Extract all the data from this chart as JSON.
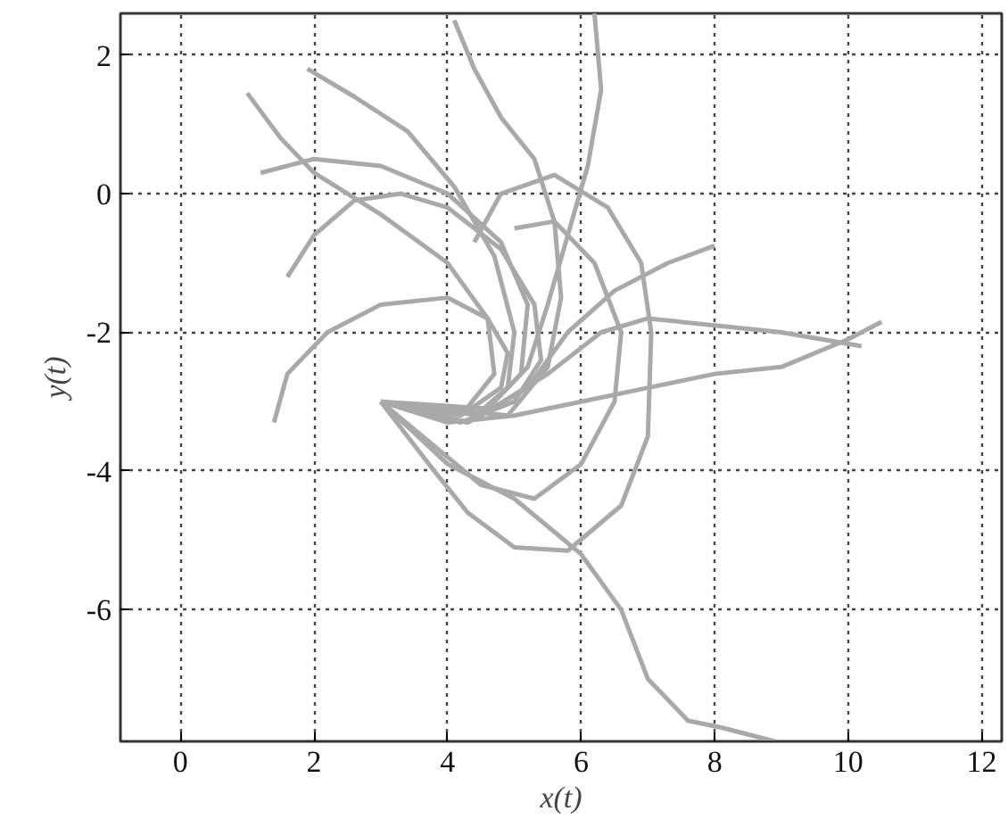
{
  "chart_data": {
    "type": "line",
    "xlabel": "x(t)",
    "ylabel": "y(t)",
    "xlim": [
      -0.9,
      12.3
    ],
    "ylim": [
      -7.9,
      2.6
    ],
    "xticks": [
      0,
      2,
      4,
      6,
      8,
      10,
      12
    ],
    "yticks": [
      -6,
      -4,
      -2,
      0,
      2
    ],
    "grid": true,
    "series": [
      {
        "color": "#a9a9a9",
        "x": [
          1.4,
          1.6,
          2.2,
          3.0,
          4.0,
          4.6,
          4.9,
          4.8,
          4.2,
          3.0
        ],
        "values": [
          -3.3,
          -2.6,
          -2.0,
          -1.6,
          -1.5,
          -1.8,
          -2.3,
          -2.8,
          -3.2,
          -3.0
        ]
      },
      {
        "color": "#a9a9a9",
        "x": [
          1.6,
          2.0,
          2.6,
          3.3,
          4.0,
          4.8,
          5.3,
          5.4,
          5.0,
          4.2,
          3.0
        ],
        "values": [
          -1.2,
          -0.6,
          -0.1,
          0.0,
          -0.2,
          -0.8,
          -1.6,
          -2.4,
          -3.0,
          -3.3,
          -3.0
        ]
      },
      {
        "color": "#a9a9a9",
        "x": [
          1.2,
          2.0,
          3.0,
          4.0,
          4.8,
          5.2,
          5.1,
          4.5,
          3.0
        ],
        "values": [
          0.3,
          0.5,
          0.4,
          0.0,
          -0.7,
          -1.6,
          -2.6,
          -3.2,
          -3.0
        ]
      },
      {
        "color": "#a9a9a9",
        "x": [
          1.0,
          1.5,
          2.0,
          3.0,
          4.0,
          4.6,
          4.7,
          4.2,
          3.0
        ],
        "values": [
          1.45,
          0.8,
          0.3,
          -0.3,
          -1.0,
          -1.8,
          -2.6,
          -3.2,
          -3.0
        ]
      },
      {
        "color": "#a9a9a9",
        "x": [
          1.9,
          2.6,
          3.4,
          4.1,
          4.7,
          5.0,
          4.9,
          4.3,
          3.0
        ],
        "values": [
          1.8,
          1.4,
          0.9,
          0.1,
          -0.9,
          -2.0,
          -2.8,
          -3.3,
          -3.0
        ]
      },
      {
        "color": "#a9a9a9",
        "x": [
          4.1,
          4.4,
          4.8,
          5.3,
          5.6,
          5.7,
          5.5,
          4.9,
          3.0
        ],
        "values": [
          2.5,
          1.8,
          1.1,
          0.5,
          -0.4,
          -1.5,
          -2.5,
          -3.2,
          -3.0
        ]
      },
      {
        "color": "#a9a9a9",
        "x": [
          6.2,
          6.3,
          6.1,
          5.8,
          5.5,
          5.2,
          4.6,
          3.0
        ],
        "values": [
          2.6,
          1.5,
          0.4,
          -0.6,
          -1.6,
          -2.5,
          -3.1,
          -3.0
        ]
      },
      {
        "color": "#a9a9a9",
        "x": [
          4.4,
          4.8,
          5.6,
          6.4,
          6.9,
          7.05,
          7.0,
          6.6,
          5.8,
          5.0,
          4.3,
          3.8,
          3.0
        ],
        "values": [
          -0.7,
          0.0,
          0.27,
          -0.2,
          -1.0,
          -2.0,
          -3.5,
          -4.5,
          -5.15,
          -5.1,
          -4.6,
          -4.0,
          -3.0
        ]
      },
      {
        "color": "#a9a9a9",
        "x": [
          5.0,
          5.6,
          6.2,
          6.6,
          6.5,
          6.0,
          5.3,
          4.5,
          3.0
        ],
        "values": [
          -0.5,
          -0.4,
          -1.0,
          -2.0,
          -3.0,
          -3.9,
          -4.4,
          -4.2,
          -3.0
        ]
      },
      {
        "color": "#a9a9a9",
        "x": [
          3.0,
          4.0,
          5.0,
          6.0,
          6.6,
          7.0,
          7.6,
          8.1,
          8.9
        ],
        "values": [
          -3.0,
          -3.9,
          -4.4,
          -5.2,
          -6.0,
          -7.0,
          -7.6,
          -7.7,
          -7.9
        ]
      },
      {
        "color": "#a9a9a9",
        "x": [
          8.0,
          7.3,
          6.5,
          5.8,
          5.2,
          4.3,
          3.0
        ],
        "values": [
          -0.75,
          -1.0,
          -1.4,
          -2.0,
          -2.8,
          -3.3,
          -3.0
        ]
      },
      {
        "color": "#a9a9a9",
        "x": [
          10.5,
          10.0,
          9.0,
          8.0,
          7.0,
          6.0,
          5.0,
          4.0,
          3.0
        ],
        "values": [
          -1.85,
          -2.1,
          -2.5,
          -2.6,
          -2.8,
          -3.0,
          -3.2,
          -3.3,
          -3.0
        ]
      },
      {
        "color": "#a9a9a9",
        "x": [
          10.2,
          9.0,
          8.0,
          7.0,
          6.3,
          5.5,
          4.5,
          3.0
        ],
        "values": [
          -2.2,
          -2.0,
          -1.9,
          -1.8,
          -2.0,
          -2.6,
          -3.2,
          -3.0
        ]
      }
    ]
  }
}
